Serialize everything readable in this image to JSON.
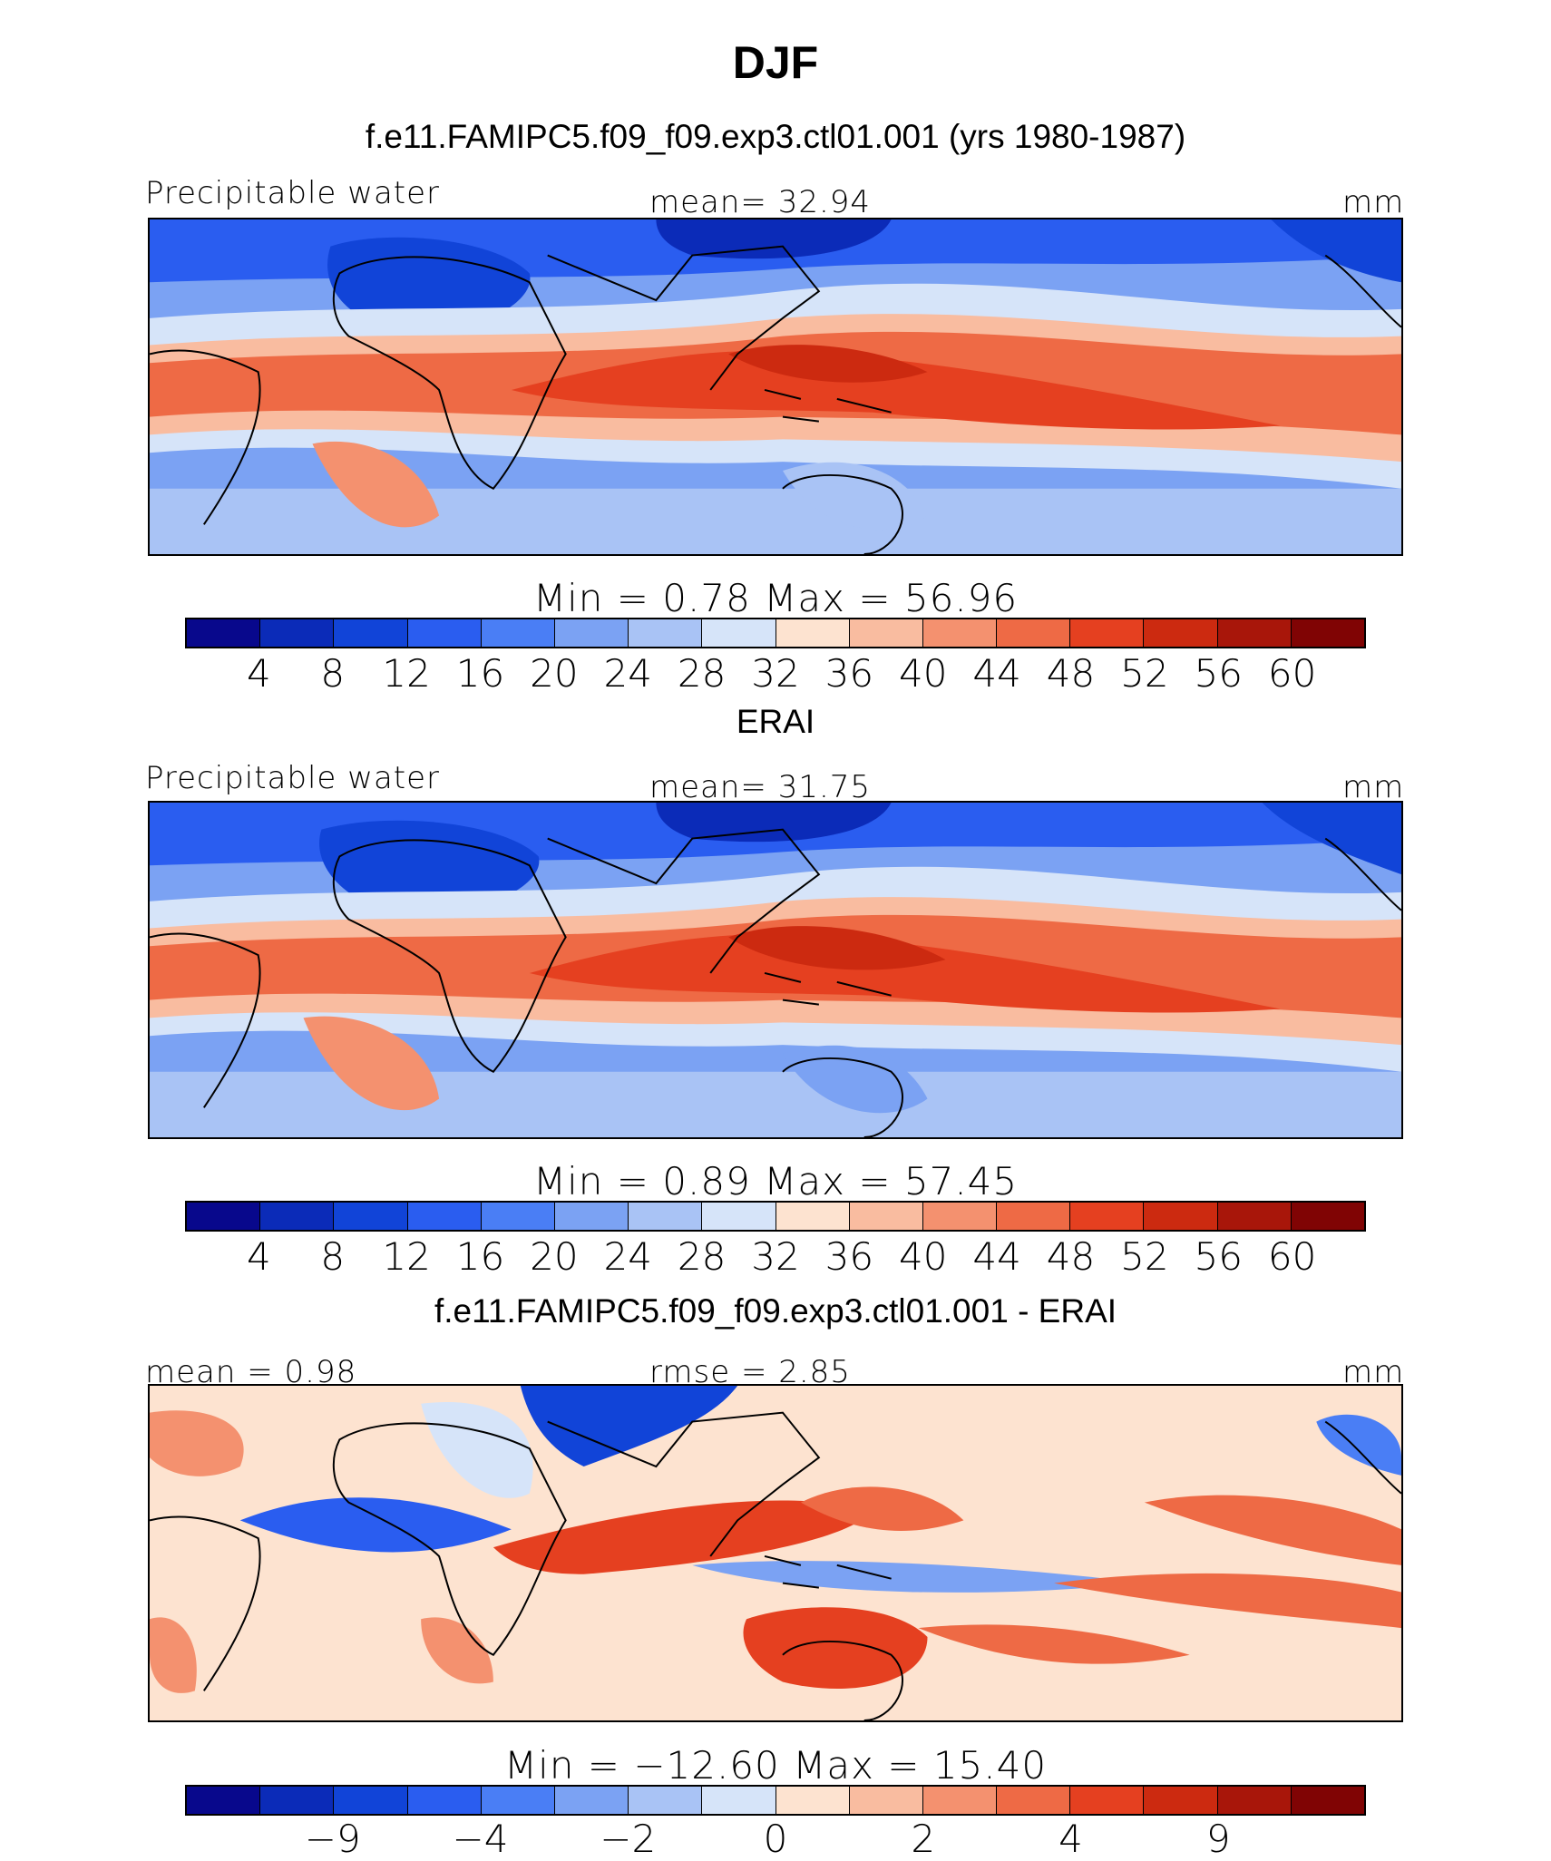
{
  "title": "DJF",
  "colors": {
    "abs": [
      "#08088c",
      "#0b2bb8",
      "#1144d8",
      "#2a5df0",
      "#4a7ef5",
      "#7ba2f3",
      "#a9c3f5",
      "#d6e4f9",
      "#fde3d0",
      "#f9bca0",
      "#f4916f",
      "#ee6a45",
      "#e54020",
      "#cc2a10",
      "#a8160a",
      "#800404"
    ],
    "diff": [
      "#08088c",
      "#0b2bb8",
      "#1144d8",
      "#2a5df0",
      "#4a7ef5",
      "#7ba2f3",
      "#a9c3f5",
      "#d6e4f9",
      "#fde3d0",
      "#f9bca0",
      "#f4916f",
      "#ee6a45",
      "#e54020",
      "#cc2a10",
      "#a8160a",
      "#800404"
    ]
  },
  "panels": [
    {
      "subtitle": "f.e11.FAMIPC5.f09_f09.exp3.ctl01.001 (yrs 1980-1987)",
      "left_label": "Precipitable water",
      "center_label": "mean=   32.94",
      "right_label": "mm",
      "minmax": "Min  =     0.78  Max  =    56.96",
      "ticks": [
        "4",
        "8",
        "12",
        "16",
        "20",
        "24",
        "28",
        "32",
        "36",
        "40",
        "44",
        "48",
        "52",
        "56",
        "60"
      ]
    },
    {
      "subtitle": "ERAI",
      "left_label": "Precipitable water",
      "center_label": "mean=   31.75",
      "right_label": "mm",
      "minmax": "Min  =     0.89  Max  =    57.45",
      "ticks": [
        "4",
        "8",
        "12",
        "16",
        "20",
        "24",
        "28",
        "32",
        "36",
        "40",
        "44",
        "48",
        "52",
        "56",
        "60"
      ]
    },
    {
      "subtitle": "f.e11.FAMIPC5.f09_f09.exp3.ctl01.001 - ERAI",
      "left_label": "mean  =     0.98",
      "center_label": "rmse  =     2.85",
      "right_label": "mm",
      "minmax": "Min  =  −12.60  Max  =    15.40",
      "ticks": [
        "−9",
        "−4",
        "−2",
        "0",
        "2",
        "4",
        "9"
      ]
    }
  ]
}
